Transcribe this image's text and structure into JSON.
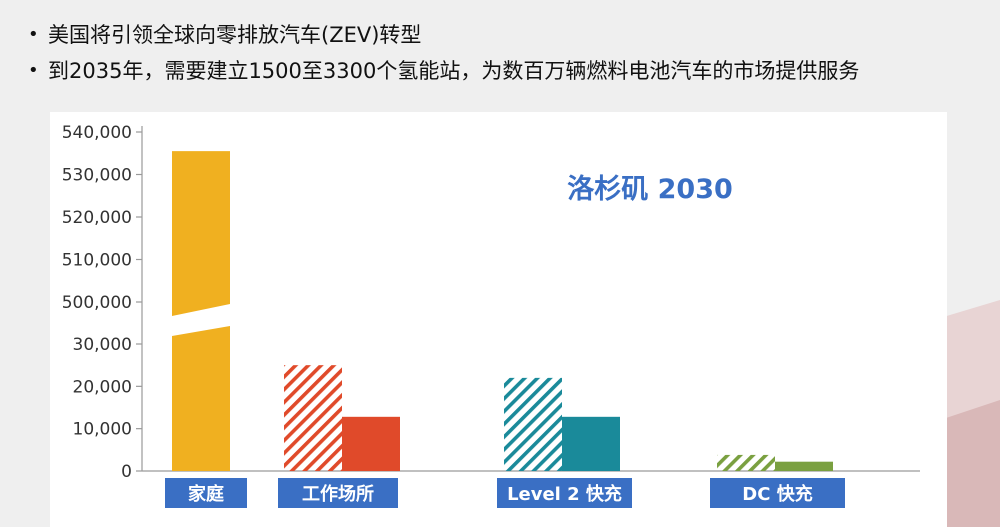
{
  "bullets": [
    "美国将引领全球向零排放汽车(ZEV)转型",
    "到2035年，需要建立1500至3300个氢能站，为数百万辆燃料电池汽车的市场提供服务"
  ],
  "colors": {
    "home": "#f0b020",
    "workplace": "#e04a2a",
    "level2": "#1a8a9a",
    "dc": "#7aa040",
    "category_label_bg": "#3a6fc4",
    "title": "#3a6fc4"
  },
  "chart_data": {
    "type": "bar",
    "title": "洛杉矶 2030",
    "axis_break": {
      "lower_max": 30000,
      "upper_min": 500000
    },
    "ylim_lower": [
      0,
      30000
    ],
    "ylim_upper": [
      500000,
      540000
    ],
    "y_ticks": [
      "0",
      "10,000",
      "20,000",
      "30,000",
      "500,000",
      "510,000",
      "520,000",
      "530,000",
      "540,000"
    ],
    "categories": [
      "家庭",
      "工作场所",
      "Level 2 快充",
      "DC 快充"
    ],
    "bars": [
      {
        "category": "家庭",
        "value": 535500,
        "style": "solid",
        "color": "#f0b020"
      },
      {
        "category": "工作场所",
        "value": 25000,
        "style": "hatched",
        "color": "#e04a2a"
      },
      {
        "category": "工作场所",
        "value": 12800,
        "style": "solid",
        "color": "#e04a2a"
      },
      {
        "category": "Level 2 快充",
        "value": 22000,
        "style": "hatched",
        "color": "#1a8a9a"
      },
      {
        "category": "Level 2 快充",
        "value": 12800,
        "style": "solid",
        "color": "#1a8a9a"
      },
      {
        "category": "DC 快充",
        "value": 3800,
        "style": "hatched",
        "color": "#7aa040"
      },
      {
        "category": "DC 快充",
        "value": 2200,
        "style": "solid",
        "color": "#7aa040"
      }
    ],
    "grid": false
  }
}
